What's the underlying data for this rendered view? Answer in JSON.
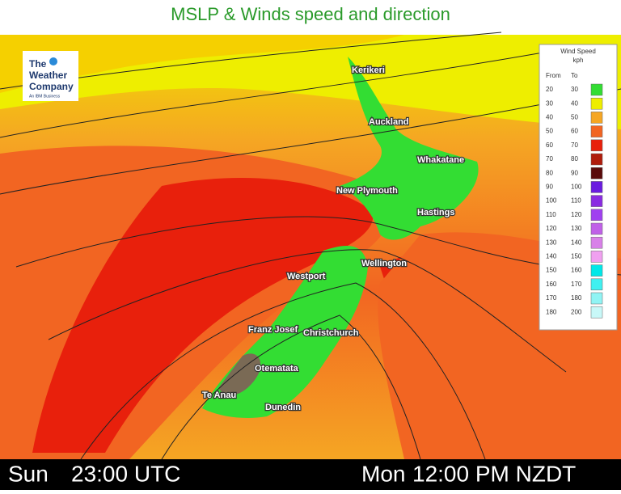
{
  "title": "MSLP & Winds speed and direction",
  "logo": {
    "lines": [
      "The",
      "Weather",
      "Company"
    ],
    "tagline": "An IBM Business"
  },
  "cities": [
    "Kerikeri",
    "Auckland",
    "Whakatane",
    "New Plymouth",
    "Hastings",
    "Wellington",
    "Westport",
    "Franz Josef",
    "Christchurch",
    "Otematata",
    "Te Anau",
    "Dunedin"
  ],
  "legend": {
    "title": "Wind Speed",
    "unit": "kph",
    "headers": [
      "From",
      "To"
    ],
    "rows": [
      {
        "from": 20,
        "to": 30,
        "color": "#33dd33"
      },
      {
        "from": 30,
        "to": 40,
        "color": "#eeee00"
      },
      {
        "from": 40,
        "to": 50,
        "color": "#f5a623"
      },
      {
        "from": 50,
        "to": 60,
        "color": "#f26522"
      },
      {
        "from": 60,
        "to": 70,
        "color": "#e8200c"
      },
      {
        "from": 70,
        "to": 80,
        "color": "#b01c0c"
      },
      {
        "from": 80,
        "to": 90,
        "color": "#5a0a0a"
      },
      {
        "from": 90,
        "to": 100,
        "color": "#6a1be0"
      },
      {
        "from": 100,
        "to": 110,
        "color": "#8a2be2"
      },
      {
        "from": 110,
        "to": 120,
        "color": "#a040f0"
      },
      {
        "from": 120,
        "to": 130,
        "color": "#c060e8"
      },
      {
        "from": 130,
        "to": 140,
        "color": "#d880e8"
      },
      {
        "from": 140,
        "to": 150,
        "color": "#f0a0f0"
      },
      {
        "from": 150,
        "to": 160,
        "color": "#00e8e8"
      },
      {
        "from": 160,
        "to": 170,
        "color": "#40f0f0"
      },
      {
        "from": 170,
        "to": 180,
        "color": "#90f4f4"
      },
      {
        "from": 180,
        "to": 200,
        "color": "#c8f8f8"
      }
    ]
  },
  "footer": {
    "utc_day": "Sun",
    "utc_time": "23:00 UTC",
    "local_day": "Mon",
    "local_time": "12:00 PM NZDT"
  }
}
